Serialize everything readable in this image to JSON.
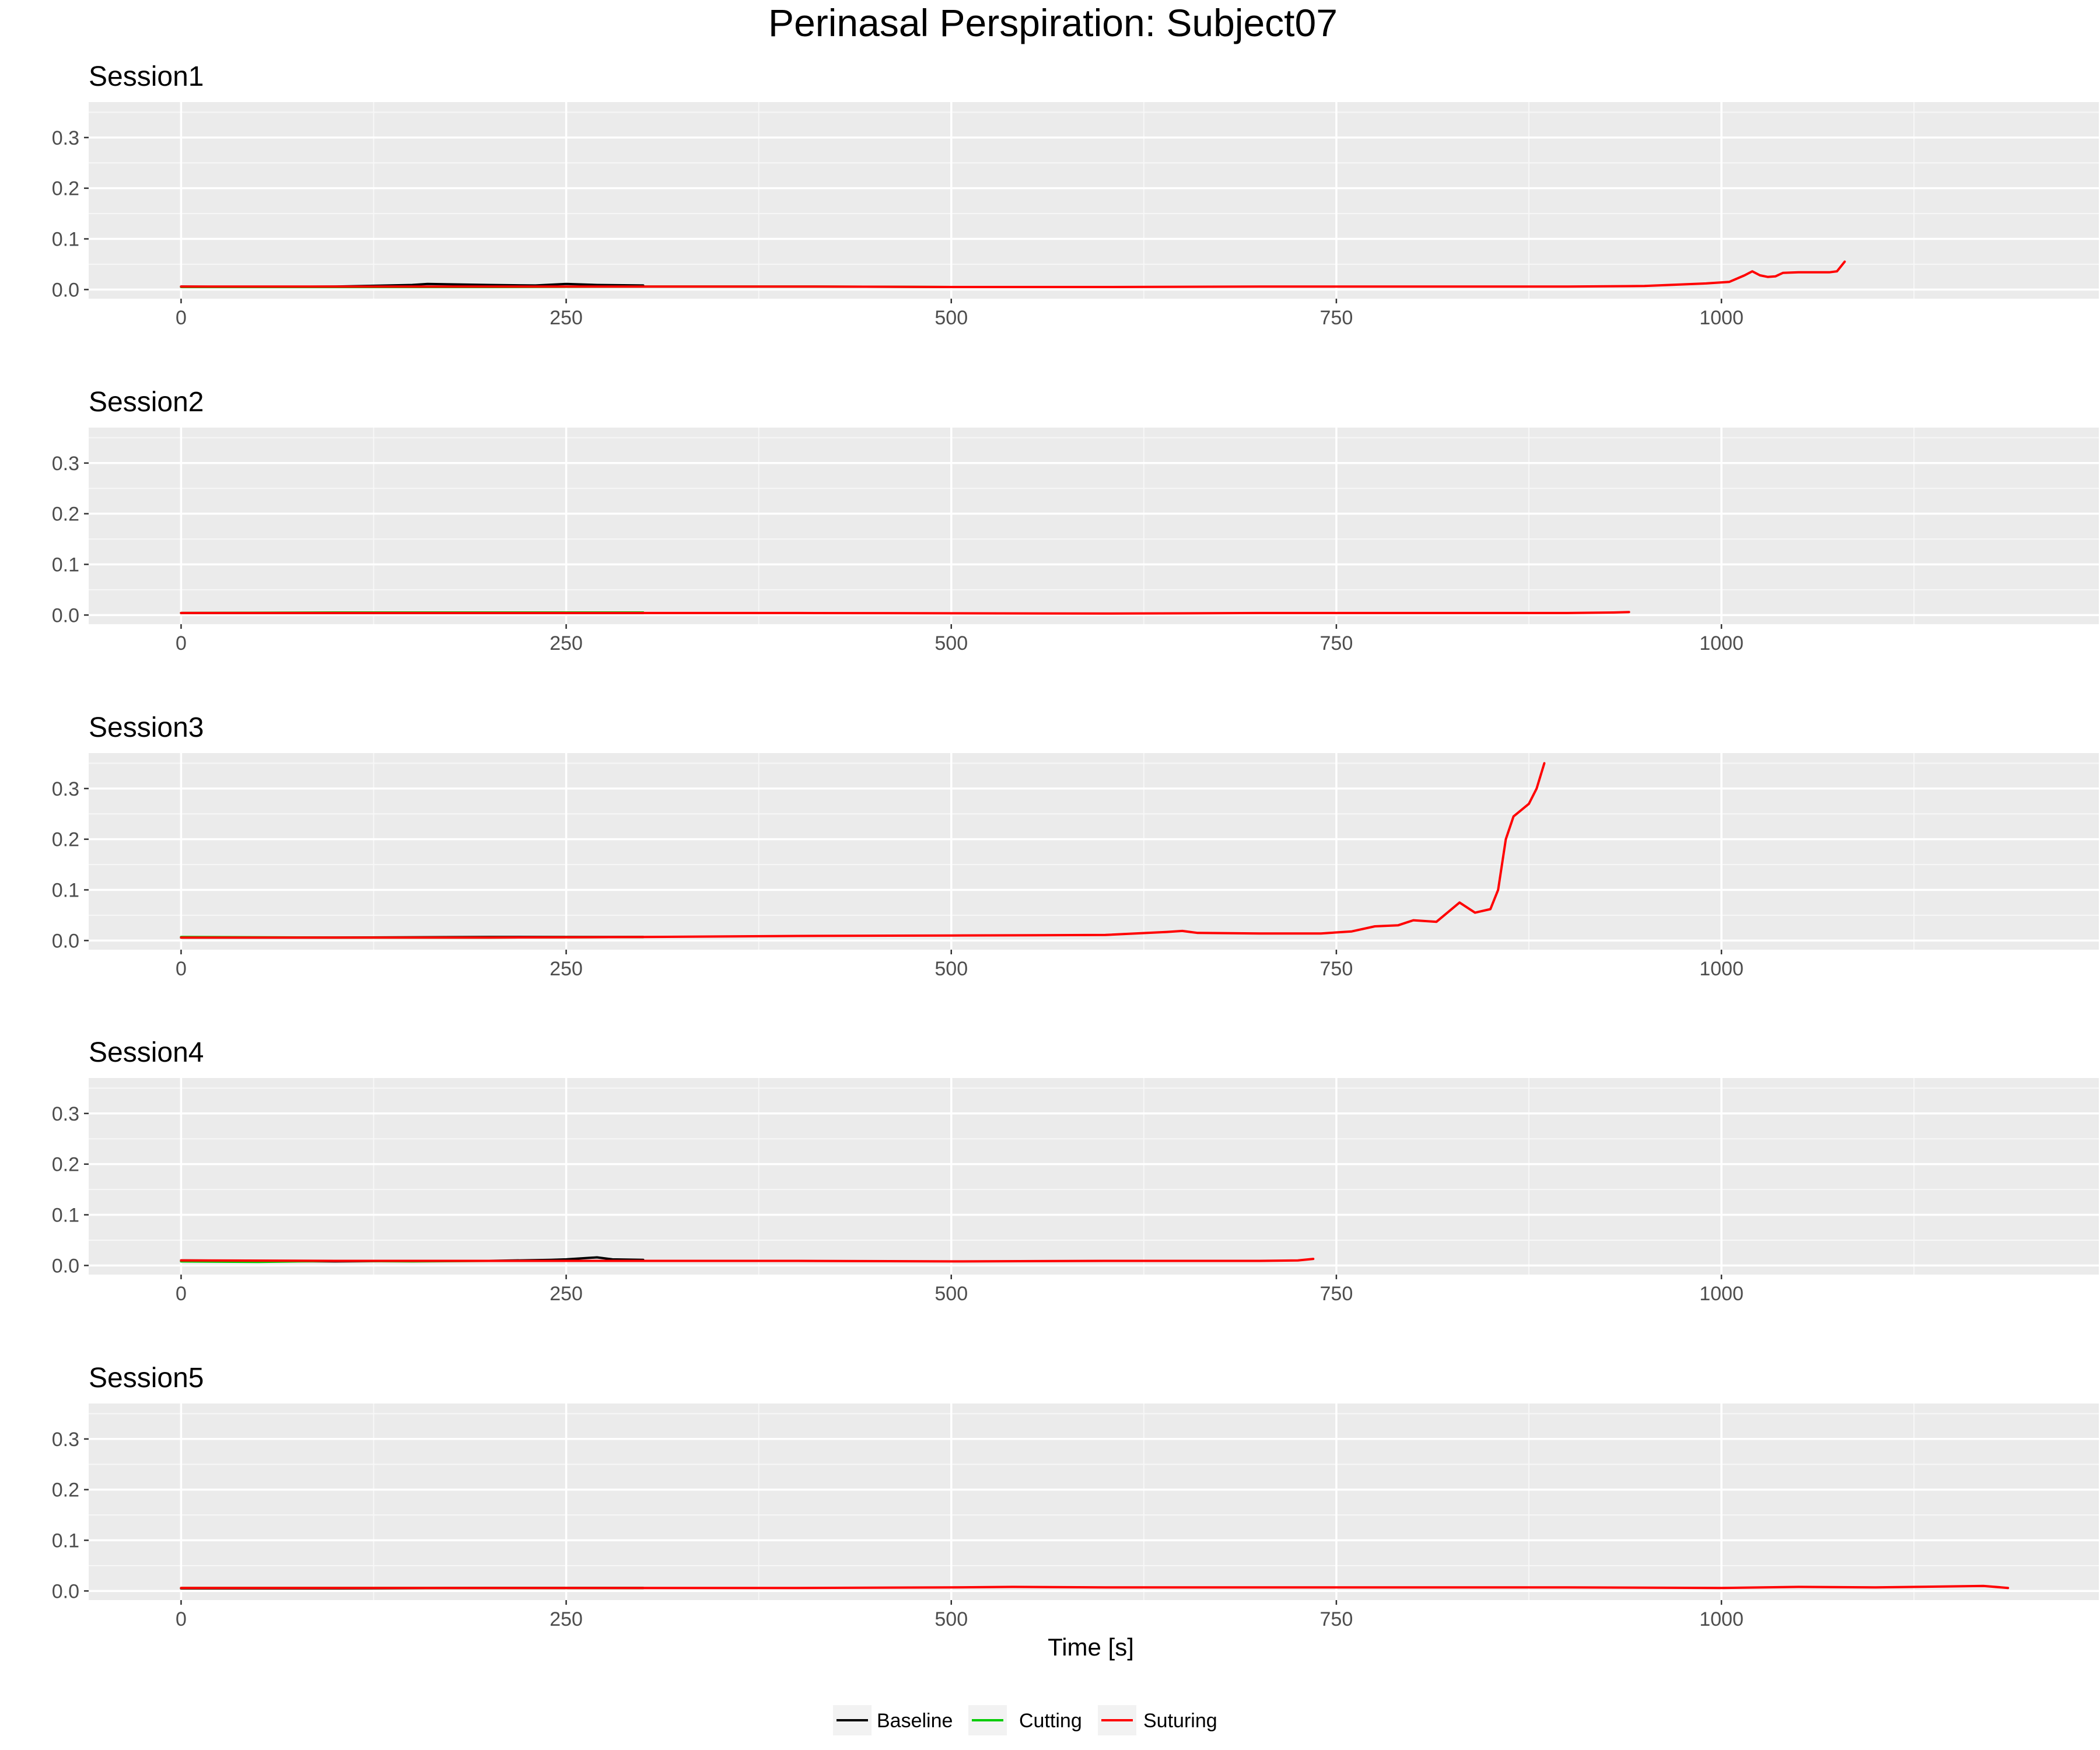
{
  "chart_data": {
    "type": "line",
    "title": "Perinasal Perspiration:  Subject07",
    "xlabel": "Time [s]",
    "ylabel": "",
    "xlim": [
      -60,
      1245
    ],
    "ylim": [
      -0.018,
      0.37
    ],
    "x_ticks": [
      0,
      250,
      500,
      750,
      1000
    ],
    "y_ticks": [
      0.0,
      0.1,
      0.2,
      0.3
    ],
    "y_tick_labels": [
      "0.0",
      "0.1",
      "0.2",
      "0.3"
    ],
    "grid": true,
    "legend": {
      "placement": "bottom",
      "entries": [
        {
          "name": "Baseline",
          "color": "#000000"
        },
        {
          "name": "Cutting",
          "color": "#00cc00"
        },
        {
          "name": "Suturing",
          "color": "#ff0000"
        }
      ]
    },
    "panels": [
      {
        "title": "Session1",
        "series": [
          {
            "name": "Baseline",
            "color": "#000000",
            "points": [
              [
                0,
                0.006
              ],
              [
                50,
                0.005
              ],
              [
                100,
                0.006
              ],
              [
                150,
                0.009
              ],
              [
                160,
                0.011
              ],
              [
                200,
                0.009
              ],
              [
                230,
                0.008
              ],
              [
                250,
                0.011
              ],
              [
                270,
                0.009
              ],
              [
                300,
                0.008
              ]
            ]
          },
          {
            "name": "Cutting",
            "color": "#00cc00",
            "points": [
              [
                0,
                0.005
              ],
              [
                100,
                0.005
              ],
              [
                200,
                0.005
              ],
              [
                300,
                0.006
              ],
              [
                400,
                0.006
              ],
              [
                500,
                0.005
              ]
            ]
          },
          {
            "name": "Suturing",
            "color": "#ff0000",
            "points": [
              [
                0,
                0.006
              ],
              [
                100,
                0.006
              ],
              [
                200,
                0.006
              ],
              [
                300,
                0.006
              ],
              [
                400,
                0.006
              ],
              [
                500,
                0.005
              ],
              [
                600,
                0.005
              ],
              [
                700,
                0.006
              ],
              [
                800,
                0.006
              ],
              [
                900,
                0.006
              ],
              [
                950,
                0.007
              ],
              [
                990,
                0.012
              ],
              [
                1005,
                0.015
              ],
              [
                1015,
                0.028
              ],
              [
                1020,
                0.036
              ],
              [
                1025,
                0.028
              ],
              [
                1030,
                0.025
              ],
              [
                1035,
                0.026
              ],
              [
                1040,
                0.033
              ],
              [
                1050,
                0.034
              ],
              [
                1070,
                0.034
              ],
              [
                1075,
                0.036
              ],
              [
                1080,
                0.055
              ]
            ]
          }
        ]
      },
      {
        "title": "Session2",
        "series": [
          {
            "name": "Baseline",
            "color": "#000000",
            "points": [
              [
                0,
                0.004
              ],
              [
                100,
                0.004
              ],
              [
                200,
                0.004
              ],
              [
                300,
                0.004
              ]
            ]
          },
          {
            "name": "Cutting",
            "color": "#00cc00",
            "points": [
              [
                0,
                0.004
              ],
              [
                100,
                0.005
              ],
              [
                200,
                0.005
              ],
              [
                300,
                0.005
              ]
            ]
          },
          {
            "name": "Suturing",
            "color": "#ff0000",
            "points": [
              [
                0,
                0.004
              ],
              [
                200,
                0.004
              ],
              [
                400,
                0.004
              ],
              [
                600,
                0.003
              ],
              [
                700,
                0.004
              ],
              [
                800,
                0.004
              ],
              [
                900,
                0.004
              ],
              [
                930,
                0.005
              ],
              [
                940,
                0.006
              ]
            ]
          }
        ]
      },
      {
        "title": "Session3",
        "series": [
          {
            "name": "Baseline",
            "color": "#000000",
            "points": [
              [
                0,
                0.006
              ],
              [
                100,
                0.006
              ],
              [
                200,
                0.007
              ],
              [
                300,
                0.007
              ]
            ]
          },
          {
            "name": "Cutting",
            "color": "#00cc00",
            "points": [
              [
                0,
                0.007
              ],
              [
                100,
                0.006
              ],
              [
                200,
                0.006
              ],
              [
                300,
                0.007
              ]
            ]
          },
          {
            "name": "Suturing",
            "color": "#ff0000",
            "points": [
              [
                0,
                0.006
              ],
              [
                100,
                0.006
              ],
              [
                200,
                0.006
              ],
              [
                300,
                0.007
              ],
              [
                400,
                0.009
              ],
              [
                500,
                0.01
              ],
              [
                600,
                0.011
              ],
              [
                640,
                0.017
              ],
              [
                650,
                0.019
              ],
              [
                660,
                0.015
              ],
              [
                700,
                0.014
              ],
              [
                740,
                0.014
              ],
              [
                760,
                0.018
              ],
              [
                775,
                0.028
              ],
              [
                790,
                0.03
              ],
              [
                800,
                0.04
              ],
              [
                815,
                0.037
              ],
              [
                830,
                0.075
              ],
              [
                840,
                0.055
              ],
              [
                850,
                0.062
              ],
              [
                855,
                0.1
              ],
              [
                860,
                0.2
              ],
              [
                865,
                0.245
              ],
              [
                875,
                0.27
              ],
              [
                880,
                0.3
              ],
              [
                885,
                0.35
              ]
            ]
          }
        ]
      },
      {
        "title": "Session4",
        "series": [
          {
            "name": "Baseline",
            "color": "#000000",
            "points": [
              [
                0,
                0.01
              ],
              [
                50,
                0.009
              ],
              [
                100,
                0.008
              ],
              [
                150,
                0.009
              ],
              [
                200,
                0.009
              ],
              [
                240,
                0.011
              ],
              [
                250,
                0.012
              ],
              [
                270,
                0.016
              ],
              [
                280,
                0.012
              ],
              [
                300,
                0.011
              ]
            ]
          },
          {
            "name": "Cutting",
            "color": "#00cc00",
            "points": [
              [
                0,
                0.008
              ],
              [
                50,
                0.007
              ],
              [
                100,
                0.009
              ],
              [
                150,
                0.008
              ],
              [
                200,
                0.009
              ],
              [
                300,
                0.009
              ]
            ]
          },
          {
            "name": "Suturing",
            "color": "#ff0000",
            "points": [
              [
                0,
                0.01
              ],
              [
                100,
                0.009
              ],
              [
                200,
                0.009
              ],
              [
                300,
                0.009
              ],
              [
                400,
                0.009
              ],
              [
                500,
                0.008
              ],
              [
                600,
                0.009
              ],
              [
                650,
                0.009
              ],
              [
                700,
                0.009
              ],
              [
                725,
                0.01
              ],
              [
                735,
                0.013
              ]
            ]
          }
        ]
      },
      {
        "title": "Session5",
        "series": [
          {
            "name": "Baseline",
            "color": "#000000",
            "points": [
              [
                0,
                0.005
              ],
              [
                50,
                0.005
              ],
              [
                100,
                0.005
              ],
              [
                200,
                0.006
              ],
              [
                300,
                0.006
              ]
            ]
          },
          {
            "name": "Cutting",
            "color": "#00cc00",
            "points": [
              [
                0,
                0.006
              ],
              [
                100,
                0.006
              ],
              [
                200,
                0.006
              ],
              [
                300,
                0.006
              ]
            ]
          },
          {
            "name": "Suturing",
            "color": "#ff0000",
            "points": [
              [
                0,
                0.006
              ],
              [
                100,
                0.006
              ],
              [
                200,
                0.006
              ],
              [
                300,
                0.006
              ],
              [
                400,
                0.006
              ],
              [
                500,
                0.007
              ],
              [
                540,
                0.008
              ],
              [
                600,
                0.007
              ],
              [
                700,
                0.007
              ],
              [
                800,
                0.007
              ],
              [
                900,
                0.007
              ],
              [
                1000,
                0.006
              ],
              [
                1050,
                0.008
              ],
              [
                1100,
                0.007
              ],
              [
                1170,
                0.01
              ],
              [
                1186,
                0.006
              ]
            ]
          }
        ]
      }
    ]
  }
}
